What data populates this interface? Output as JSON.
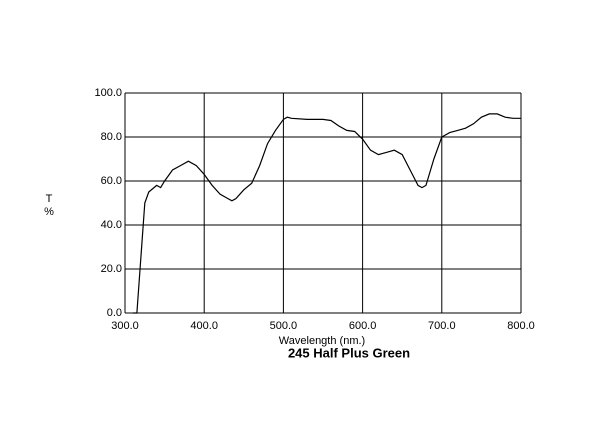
{
  "chart_data": {
    "type": "line",
    "title": "245 Half Plus Green",
    "xlabel": "Wavelength (nm.)",
    "ylabel": [
      "T",
      "%"
    ],
    "xlim": [
      300,
      800
    ],
    "ylim": [
      0,
      100
    ],
    "xticks": [
      {
        "value": 300,
        "label": "300.0"
      },
      {
        "value": 400,
        "label": "400.0"
      },
      {
        "value": 500,
        "label": "500.0"
      },
      {
        "value": 600,
        "label": "600.0"
      },
      {
        "value": 700,
        "label": "700.0"
      },
      {
        "value": 800,
        "label": "800.0"
      }
    ],
    "yticks": [
      {
        "value": 0,
        "label": "0.0"
      },
      {
        "value": 20,
        "label": "20.0"
      },
      {
        "value": 40,
        "label": "40.0"
      },
      {
        "value": 60,
        "label": "60.0"
      },
      {
        "value": 80,
        "label": "80.0"
      },
      {
        "value": 100,
        "label": "100.0"
      }
    ],
    "grid": true,
    "series": [
      {
        "color": "#000000",
        "x": [
          310,
          315,
          320,
          325,
          330,
          340,
          345,
          350,
          360,
          370,
          380,
          390,
          400,
          410,
          420,
          430,
          435,
          440,
          450,
          460,
          470,
          480,
          490,
          500,
          505,
          510,
          530,
          550,
          560,
          570,
          580,
          590,
          600,
          610,
          620,
          630,
          640,
          650,
          660,
          670,
          675,
          680,
          690,
          700,
          710,
          720,
          730,
          740,
          750,
          760,
          770,
          780,
          790,
          800
        ],
        "values": [
          0,
          0,
          25,
          50,
          55,
          58,
          57,
          60,
          65,
          67,
          69,
          67,
          63,
          58,
          54,
          52,
          51,
          52,
          56,
          59,
          67,
          77,
          83,
          88,
          89,
          88.5,
          88,
          88,
          87.5,
          85,
          83,
          82.5,
          79,
          74,
          72,
          73,
          74,
          72,
          65,
          58,
          57,
          58,
          70,
          80,
          82,
          83,
          84,
          86,
          89,
          90.5,
          90.5,
          89,
          88.5,
          88.5
        ]
      }
    ]
  }
}
